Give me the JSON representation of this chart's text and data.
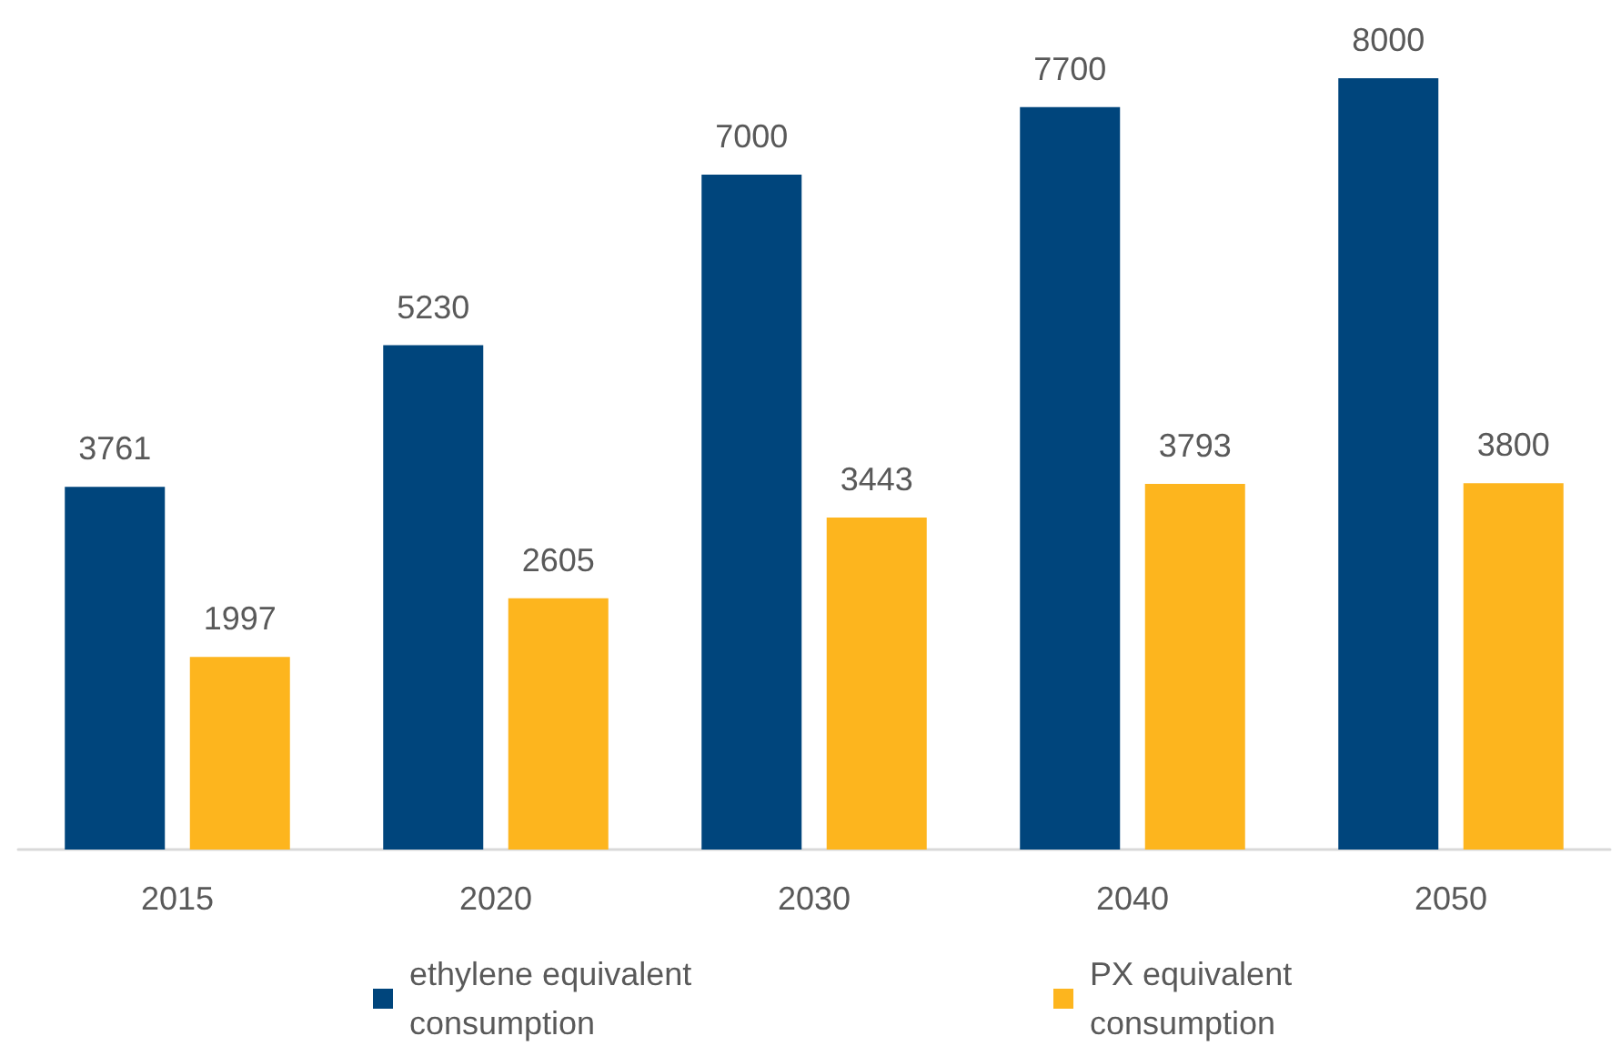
{
  "chart_data": {
    "type": "bar",
    "categories": [
      "2015",
      "2020",
      "2030",
      "2040",
      "2050"
    ],
    "series": [
      {
        "name": "ethylene equivalent consumption",
        "color": "#00457c",
        "values": [
          3761,
          5230,
          7000,
          7700,
          8000
        ]
      },
      {
        "name": "PX equivalent consumption",
        "color": "#fdb51e",
        "values": [
          1997,
          2605,
          3443,
          3793,
          3800
        ]
      }
    ],
    "data_labels": true,
    "legend": "bottom"
  }
}
